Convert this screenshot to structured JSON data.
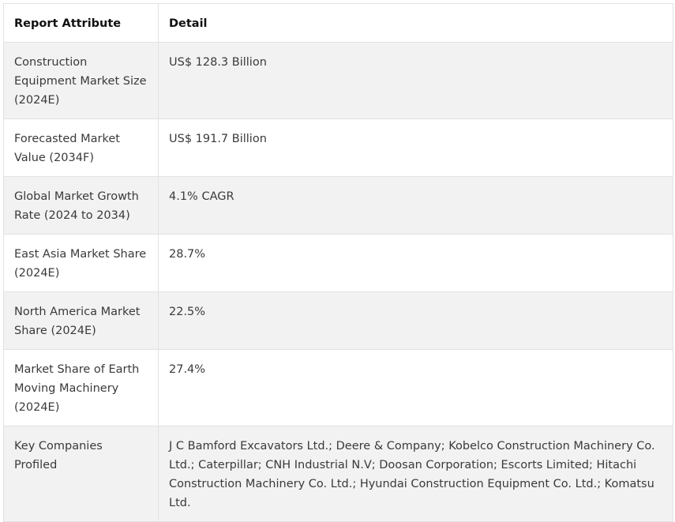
{
  "table": {
    "headers": [
      "Report Attribute",
      "Detail"
    ],
    "rows": [
      {
        "attribute": "Construction Equipment Market Size (2024E)",
        "detail": "US$ 128.3 Billion"
      },
      {
        "attribute": "Forecasted Market Value (2034F)",
        "detail": "US$ 191.7 Billion"
      },
      {
        "attribute": "Global Market Growth Rate (2024 to 2034)",
        "detail": "4.1% CAGR"
      },
      {
        "attribute": "East Asia Market Share (2024E)",
        "detail": "28.7%"
      },
      {
        "attribute": "North America Market Share (2024E)",
        "detail": "22.5%"
      },
      {
        "attribute": "Market Share of Earth Moving Machinery (2024E)",
        "detail": "27.4%"
      },
      {
        "attribute": "Key Companies Profiled",
        "detail": "J C Bamford Excavators Ltd.; Deere & Company; Kobelco Construction Machinery Co. Ltd.; Caterpillar; CNH Industrial N.V; Doosan Corporation; Escorts Limited; Hitachi Construction Machinery Co. Ltd.; Hyundai Construction Equipment Co. Ltd.; Komatsu Ltd."
      }
    ]
  }
}
